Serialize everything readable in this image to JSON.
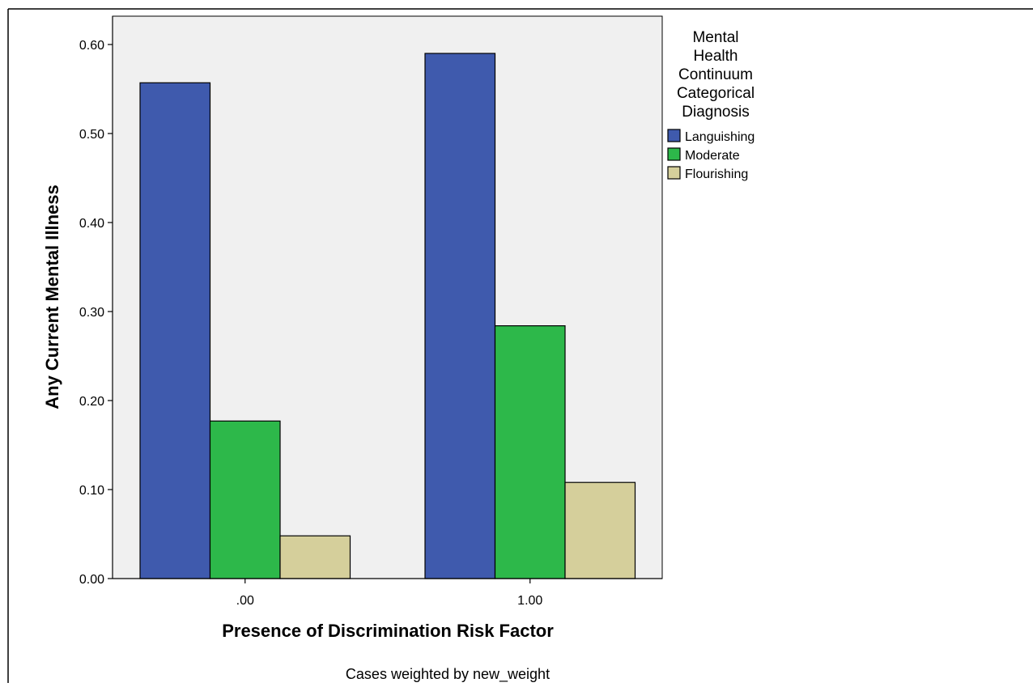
{
  "chart_data": {
    "type": "bar",
    "categories": [
      ".00",
      "1.00"
    ],
    "series": [
      {
        "name": "Languishing",
        "values": [
          0.557,
          0.59
        ],
        "color": "#3f5aad"
      },
      {
        "name": "Moderate",
        "values": [
          0.177,
          0.284
        ],
        "color": "#2db84a"
      },
      {
        "name": "Flourishing",
        "values": [
          0.048,
          0.108
        ],
        "color": "#d5cf9b"
      }
    ],
    "xlabel": "Presence of Discrimination Risk Factor",
    "ylabel": "Any Current Mental Illness",
    "ylim": [
      0,
      0.62
    ],
    "yticks": [
      0.0,
      0.1,
      0.2,
      0.3,
      0.4,
      0.5,
      0.6
    ],
    "ytick_labels": [
      "0.00",
      "0.10",
      "0.20",
      "0.30",
      "0.40",
      "0.50",
      "0.60"
    ],
    "legend": {
      "title_lines": [
        "Mental",
        "Health",
        "Continuum",
        "Categorical",
        "Diagnosis"
      ],
      "placement": "right"
    },
    "plot_background": "#f0f0f0",
    "grid": false,
    "footnote": "Cases weighted by new_weight"
  }
}
